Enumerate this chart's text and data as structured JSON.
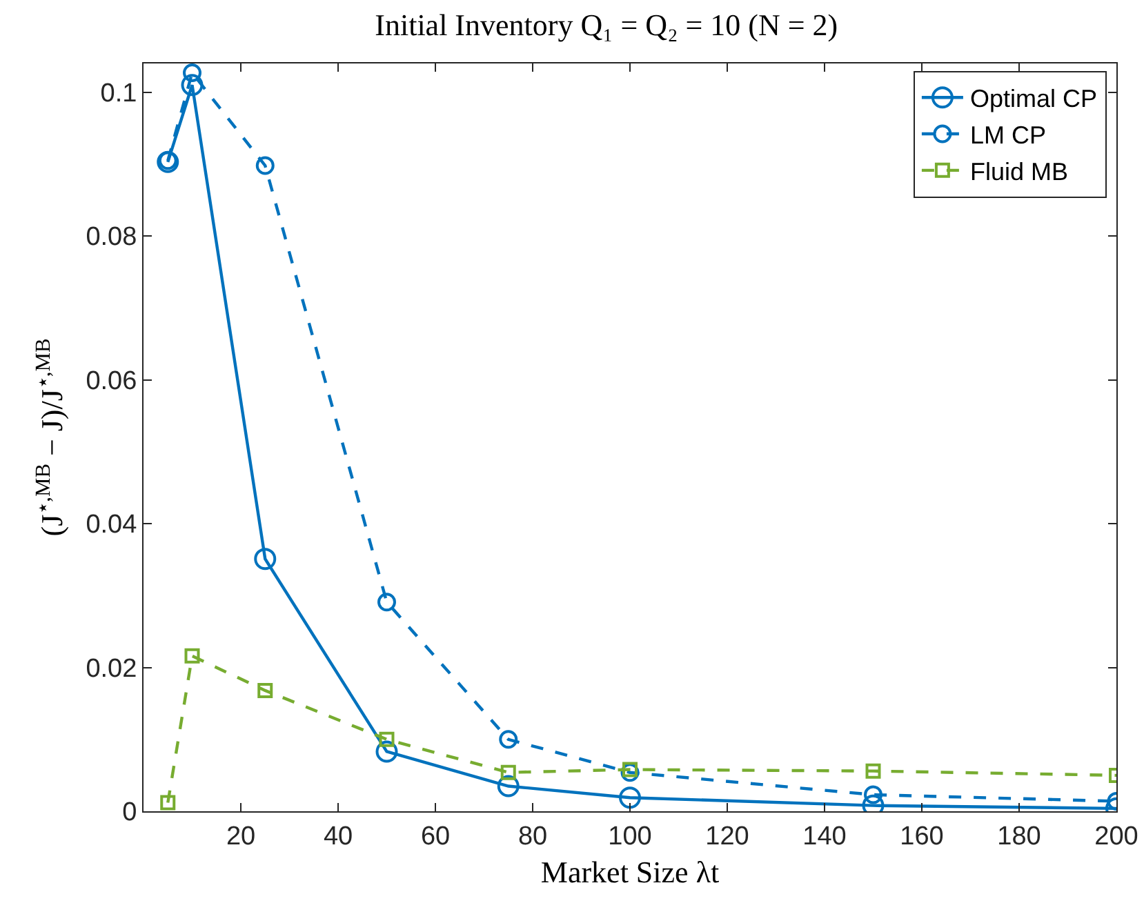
{
  "chart_data": {
    "type": "line",
    "title": "Initial Inventory Q₁ = Q₂ = 10 (N = 2)",
    "xlabel": "Market Size λt",
    "ylabel": "(J$^{⋆,MB}$ − J)/J$^{⋆,MB}$",
    "x": [
      5,
      10,
      25,
      50,
      75,
      100,
      150,
      200
    ],
    "series": [
      {
        "name": "Optimal CP",
        "color": "#0072bd",
        "line_style": "solid",
        "marker": "circle",
        "values": [
          0.0903,
          0.101,
          0.0351,
          0.0083,
          0.0035,
          0.0019,
          0.0008,
          0.0004
        ]
      },
      {
        "name": "LM CP",
        "color": "#0072bd",
        "line_style": "dashed",
        "marker": "circle",
        "values": [
          0.0905,
          0.1027,
          0.0898,
          0.0291,
          0.01,
          0.0054,
          0.0023,
          0.0014
        ]
      },
      {
        "name": "Fluid MB",
        "color": "#77ac30",
        "line_style": "dashed",
        "marker": "square",
        "values": [
          0.0012,
          0.0216,
          0.0168,
          0.01,
          0.0054,
          0.0058,
          0.0056,
          0.005
        ]
      }
    ],
    "xlim": [
      0,
      200
    ],
    "xticks": [
      20,
      40,
      60,
      80,
      100,
      120,
      140,
      160,
      180,
      200
    ],
    "ylim": [
      0,
      0.104
    ],
    "yticks": [
      0,
      0.02,
      0.04,
      0.06,
      0.08,
      0.1
    ],
    "grid": false,
    "legend": "top right"
  }
}
